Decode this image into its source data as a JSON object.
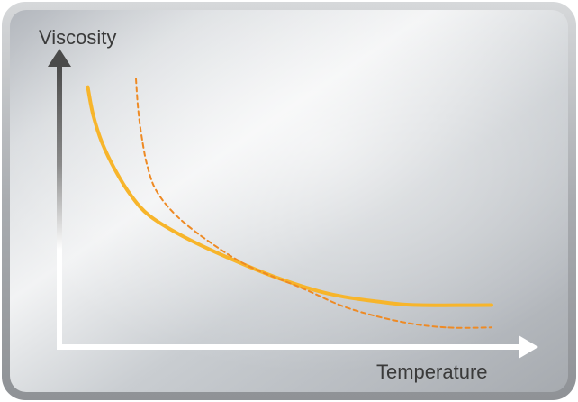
{
  "chart_data": {
    "type": "line",
    "title": "",
    "xlabel": "Temperature",
    "ylabel": "Viscosity",
    "grid": false,
    "legend": "none",
    "xlim": [
      0,
      100
    ],
    "ylim": [
      0,
      100
    ],
    "series": [
      {
        "style": "solid",
        "color": "#F7B52B",
        "points": [
          [
            6.3,
            93
          ],
          [
            7.5,
            83
          ],
          [
            9.5,
            73
          ],
          [
            12.5,
            63
          ],
          [
            16,
            54
          ],
          [
            20,
            47
          ],
          [
            27,
            40
          ],
          [
            36,
            33
          ],
          [
            48,
            25
          ],
          [
            60,
            19
          ],
          [
            72,
            16
          ],
          [
            80,
            15
          ],
          [
            96,
            15
          ]
        ]
      },
      {
        "style": "dashed",
        "color": "#EE8A24",
        "points": [
          [
            17,
            96
          ],
          [
            17.5,
            85
          ],
          [
            18.3,
            75
          ],
          [
            19.5,
            65
          ],
          [
            21.5,
            56
          ],
          [
            26,
            47
          ],
          [
            33,
            38
          ],
          [
            42,
            29
          ],
          [
            54,
            21
          ],
          [
            64,
            14
          ],
          [
            76,
            9
          ],
          [
            86,
            7
          ],
          [
            96,
            7
          ]
        ]
      }
    ]
  }
}
